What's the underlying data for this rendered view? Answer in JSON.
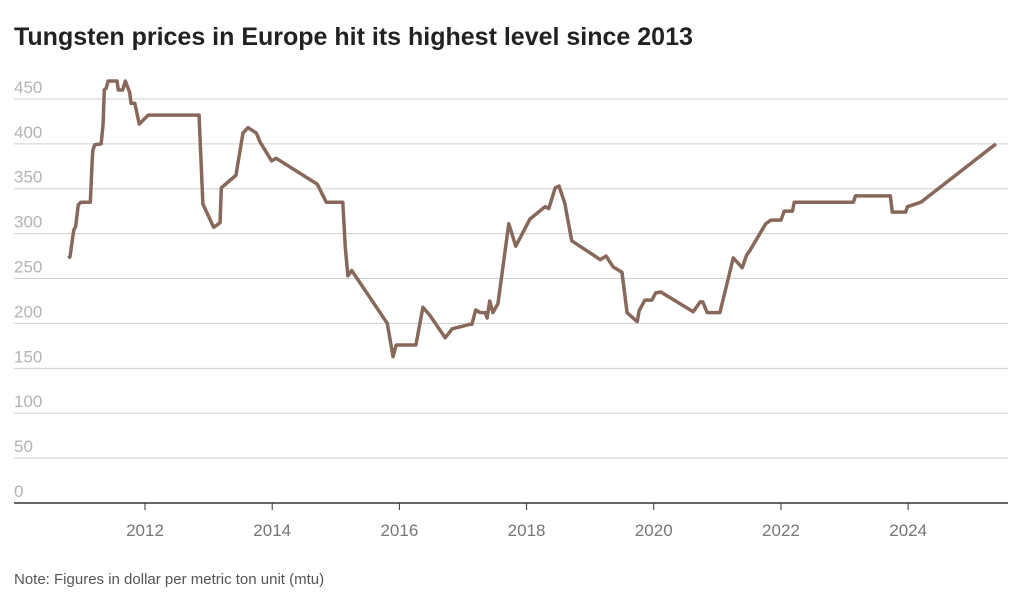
{
  "chart_data": {
    "type": "line",
    "title": "Tungsten prices in Europe hit its highest level since 2013",
    "note": "Note: Figures in dollar per metric ton unit (mtu)",
    "x": [
      2010.79,
      2010.82,
      2010.88,
      2010.91,
      2010.95,
      2010.99,
      2011.14,
      2011.17,
      2011.18,
      2011.21,
      2011.31,
      2011.34,
      2011.36,
      2011.39,
      2011.42,
      2011.56,
      2011.58,
      2011.65,
      2011.69,
      2011.76,
      2011.78,
      2011.84,
      2011.91,
      2012.05,
      2012.85,
      2012.91,
      2013.08,
      2013.18,
      2013.2,
      2013.43,
      2013.54,
      2013.62,
      2013.75,
      2013.81,
      2013.99,
      2014.06,
      2014.71,
      2014.85,
      2015.11,
      2015.15,
      2015.19,
      2015.25,
      2015.81,
      2015.9,
      2015.95,
      2016.26,
      2016.37,
      2016.48,
      2016.72,
      2016.83,
      2017.11,
      2017.14,
      2017.2,
      2017.27,
      2017.35,
      2017.38,
      2017.42,
      2017.47,
      2017.55,
      2017.72,
      2017.83,
      2018.05,
      2018.29,
      2018.35,
      2018.45,
      2018.51,
      2018.6,
      2018.71,
      2019.16,
      2019.25,
      2019.36,
      2019.5,
      2019.58,
      2019.74,
      2019.77,
      2019.86,
      2019.97,
      2020.03,
      2020.11,
      2020.62,
      2020.73,
      2020.77,
      2020.84,
      2021.04,
      2021.25,
      2021.39,
      2021.46,
      2021.51,
      2021.76,
      2021.84,
      2022.0,
      2022.05,
      2022.18,
      2022.21,
      2023.14,
      2023.17,
      2023.72,
      2023.75,
      2023.96,
      2023.99,
      2024.2,
      2025.38
    ],
    "values": [
      273,
      274,
      304,
      308,
      332,
      335,
      335,
      382,
      393,
      399,
      400,
      421,
      460,
      462,
      470,
      470,
      460,
      460,
      470,
      457,
      445,
      445,
      422,
      432,
      432,
      333,
      307,
      312,
      351,
      365,
      412,
      418,
      412,
      402,
      381,
      384,
      355,
      335,
      335,
      284,
      253,
      259,
      200,
      163,
      176,
      176,
      218,
      209,
      184,
      194,
      199,
      199,
      215,
      212,
      212,
      206,
      225,
      212,
      222,
      311,
      286,
      316,
      330,
      328,
      351,
      353,
      334,
      292,
      271,
      275,
      263,
      257,
      212,
      202,
      214,
      226,
      226,
      234,
      235,
      213,
      224,
      224,
      212,
      212,
      273,
      262,
      276,
      281,
      311,
      315,
      315,
      325,
      325,
      335,
      335,
      342,
      342,
      324,
      324,
      330,
      335,
      400
    ],
    "color": "#87685a",
    "xlim": [
      2009.94,
      2025.57
    ],
    "xticks": [
      2012,
      2014,
      2016,
      2018,
      2020,
      2022,
      2024
    ],
    "ylim": [
      0,
      480
    ],
    "yticks": [
      0,
      50,
      100,
      150,
      200,
      250,
      300,
      350,
      400,
      450
    ],
    "grid": true
  }
}
